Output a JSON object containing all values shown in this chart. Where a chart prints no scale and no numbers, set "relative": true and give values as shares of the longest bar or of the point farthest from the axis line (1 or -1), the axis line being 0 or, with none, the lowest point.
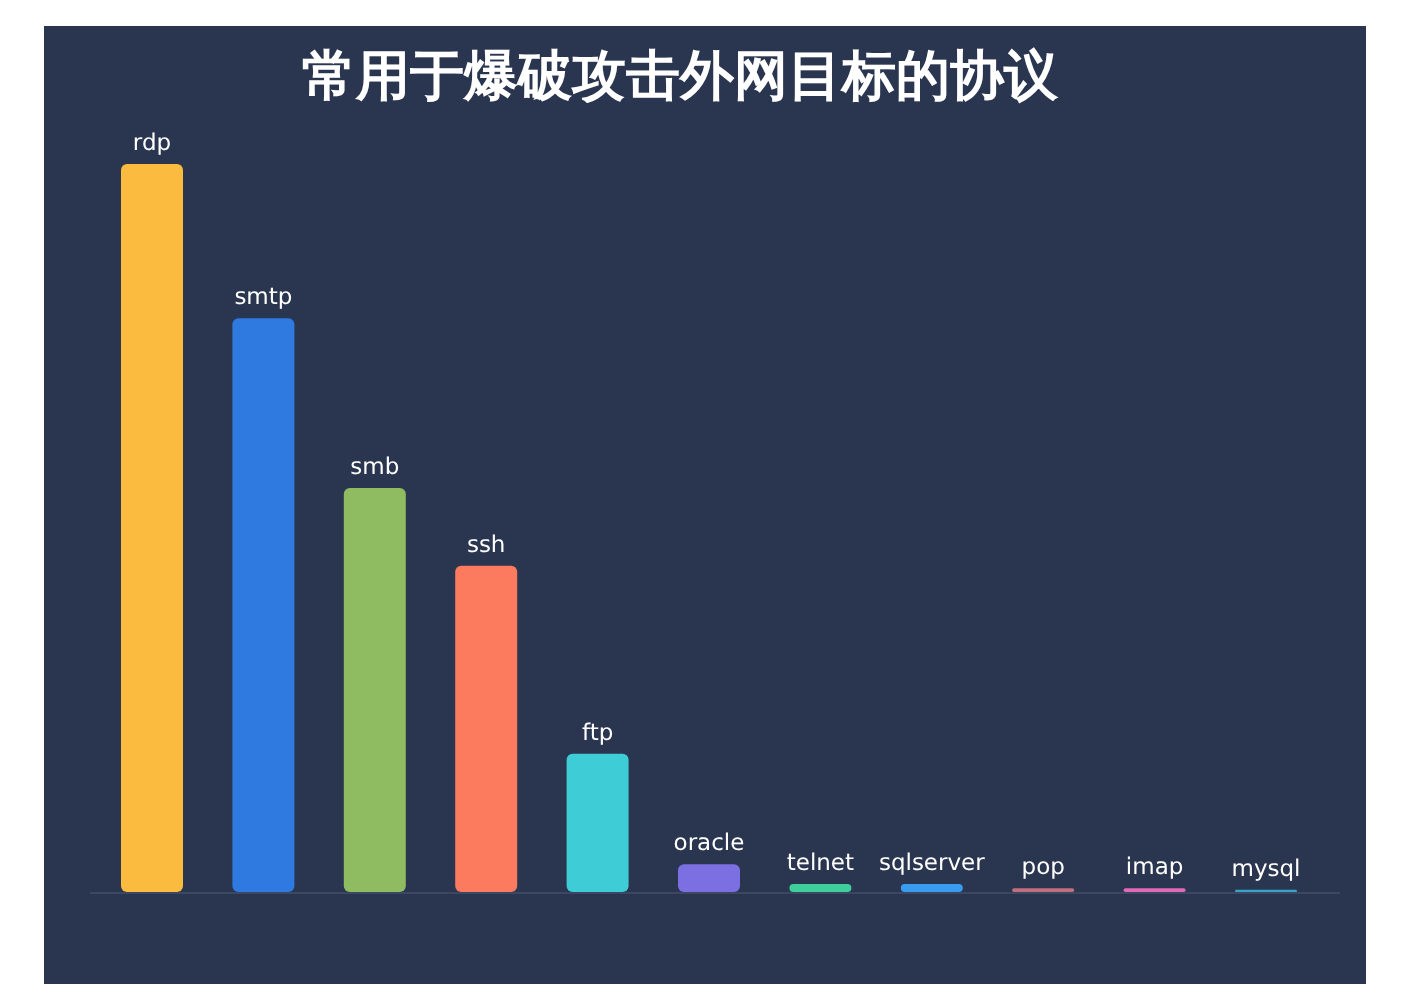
{
  "chart_data": {
    "type": "bar",
    "title": "常用于爆破攻击外网目标的协议",
    "relative": true,
    "categories": [
      "rdp",
      "smtp",
      "smb",
      "ssh",
      "ftp",
      "oracle",
      "telnet",
      "sqlserver",
      "pop",
      "imap",
      "mysql"
    ],
    "values": [
      1,
      0.788,
      0.555,
      0.448,
      0.19,
      0.038,
      0.011,
      0.011,
      0.005,
      0.005,
      0.003
    ],
    "colors": [
      "#fbbb3e",
      "#2f7ae0",
      "#8fbb61",
      "#fc7a5e",
      "#3ecdd6",
      "#7b6fe2",
      "#3ecf9b",
      "#3a9cee",
      "#c0707c",
      "#e06ab6",
      "#3aa3c8"
    ]
  }
}
